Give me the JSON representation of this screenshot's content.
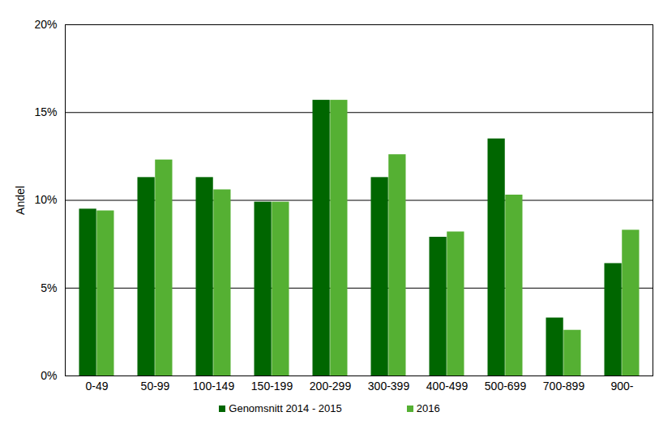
{
  "chart_data": {
    "type": "bar",
    "y_label": "Andel",
    "categories": [
      "0-49",
      "50-99",
      "100-149",
      "150-199",
      "200-299",
      "300-399",
      "400-499",
      "500-699",
      "700-899",
      "900-"
    ],
    "series": [
      {
        "name": "Genomsnitt 2014 - 2015",
        "color": "#006600",
        "values": [
          9.5,
          11.3,
          11.3,
          9.9,
          15.7,
          11.3,
          7.9,
          13.5,
          3.3,
          6.4
        ]
      },
      {
        "name": "2016",
        "color": "#55b033",
        "values": [
          9.4,
          12.3,
          10.6,
          9.9,
          15.7,
          12.6,
          8.2,
          10.3,
          2.6,
          8.3
        ]
      }
    ],
    "ylim": [
      0,
      20
    ],
    "yticks": [
      {
        "value": 0,
        "label": "0%"
      },
      {
        "value": 5,
        "label": "5%"
      },
      {
        "value": 10,
        "label": "10%"
      },
      {
        "value": 15,
        "label": "15%"
      },
      {
        "value": 20,
        "label": "20%"
      }
    ],
    "grid": true,
    "legend": "bottom"
  }
}
